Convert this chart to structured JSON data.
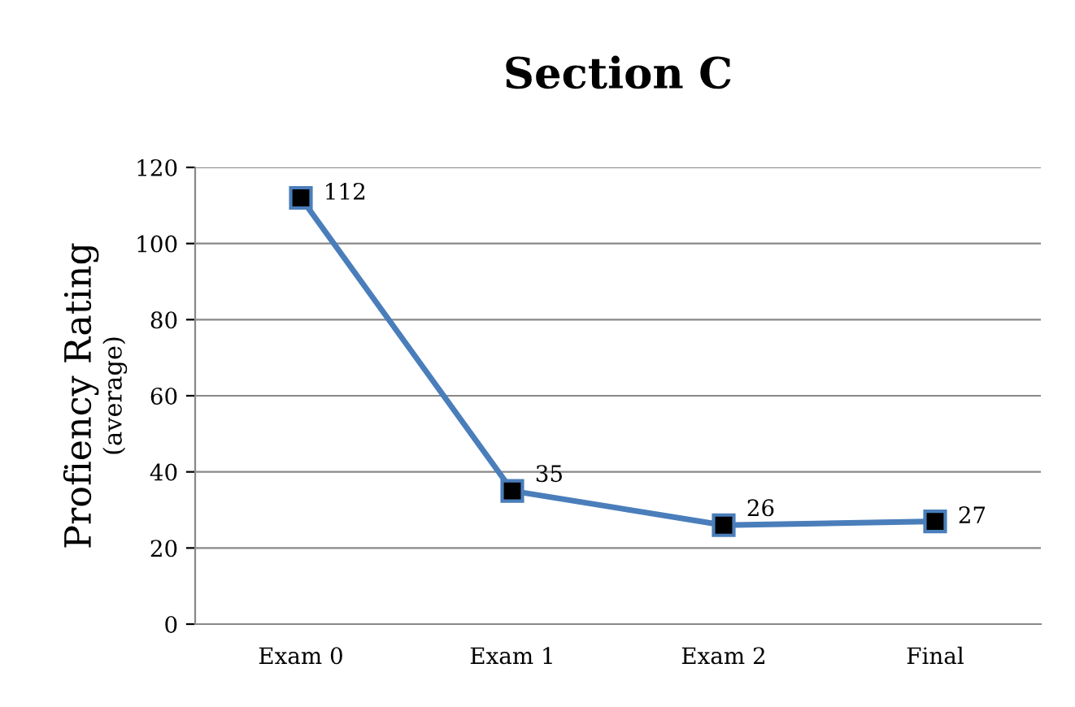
{
  "chart_data": {
    "type": "line",
    "title": "Section C",
    "ylabel": "Profiency Rating\n(average)",
    "categories": [
      "Exam 0",
      "Exam 1",
      "Exam 2",
      "Final"
    ],
    "series": [
      {
        "color": "#4a7ebb",
        "values": [
          112,
          35,
          26,
          27
        ]
      }
    ],
    "ylim": [
      0,
      120
    ],
    "yticks": [
      0,
      20,
      40,
      60,
      80,
      100,
      120
    ],
    "grid": "y",
    "legend": false,
    "marker": "square",
    "line_style": "solid",
    "data_labels": true
  }
}
